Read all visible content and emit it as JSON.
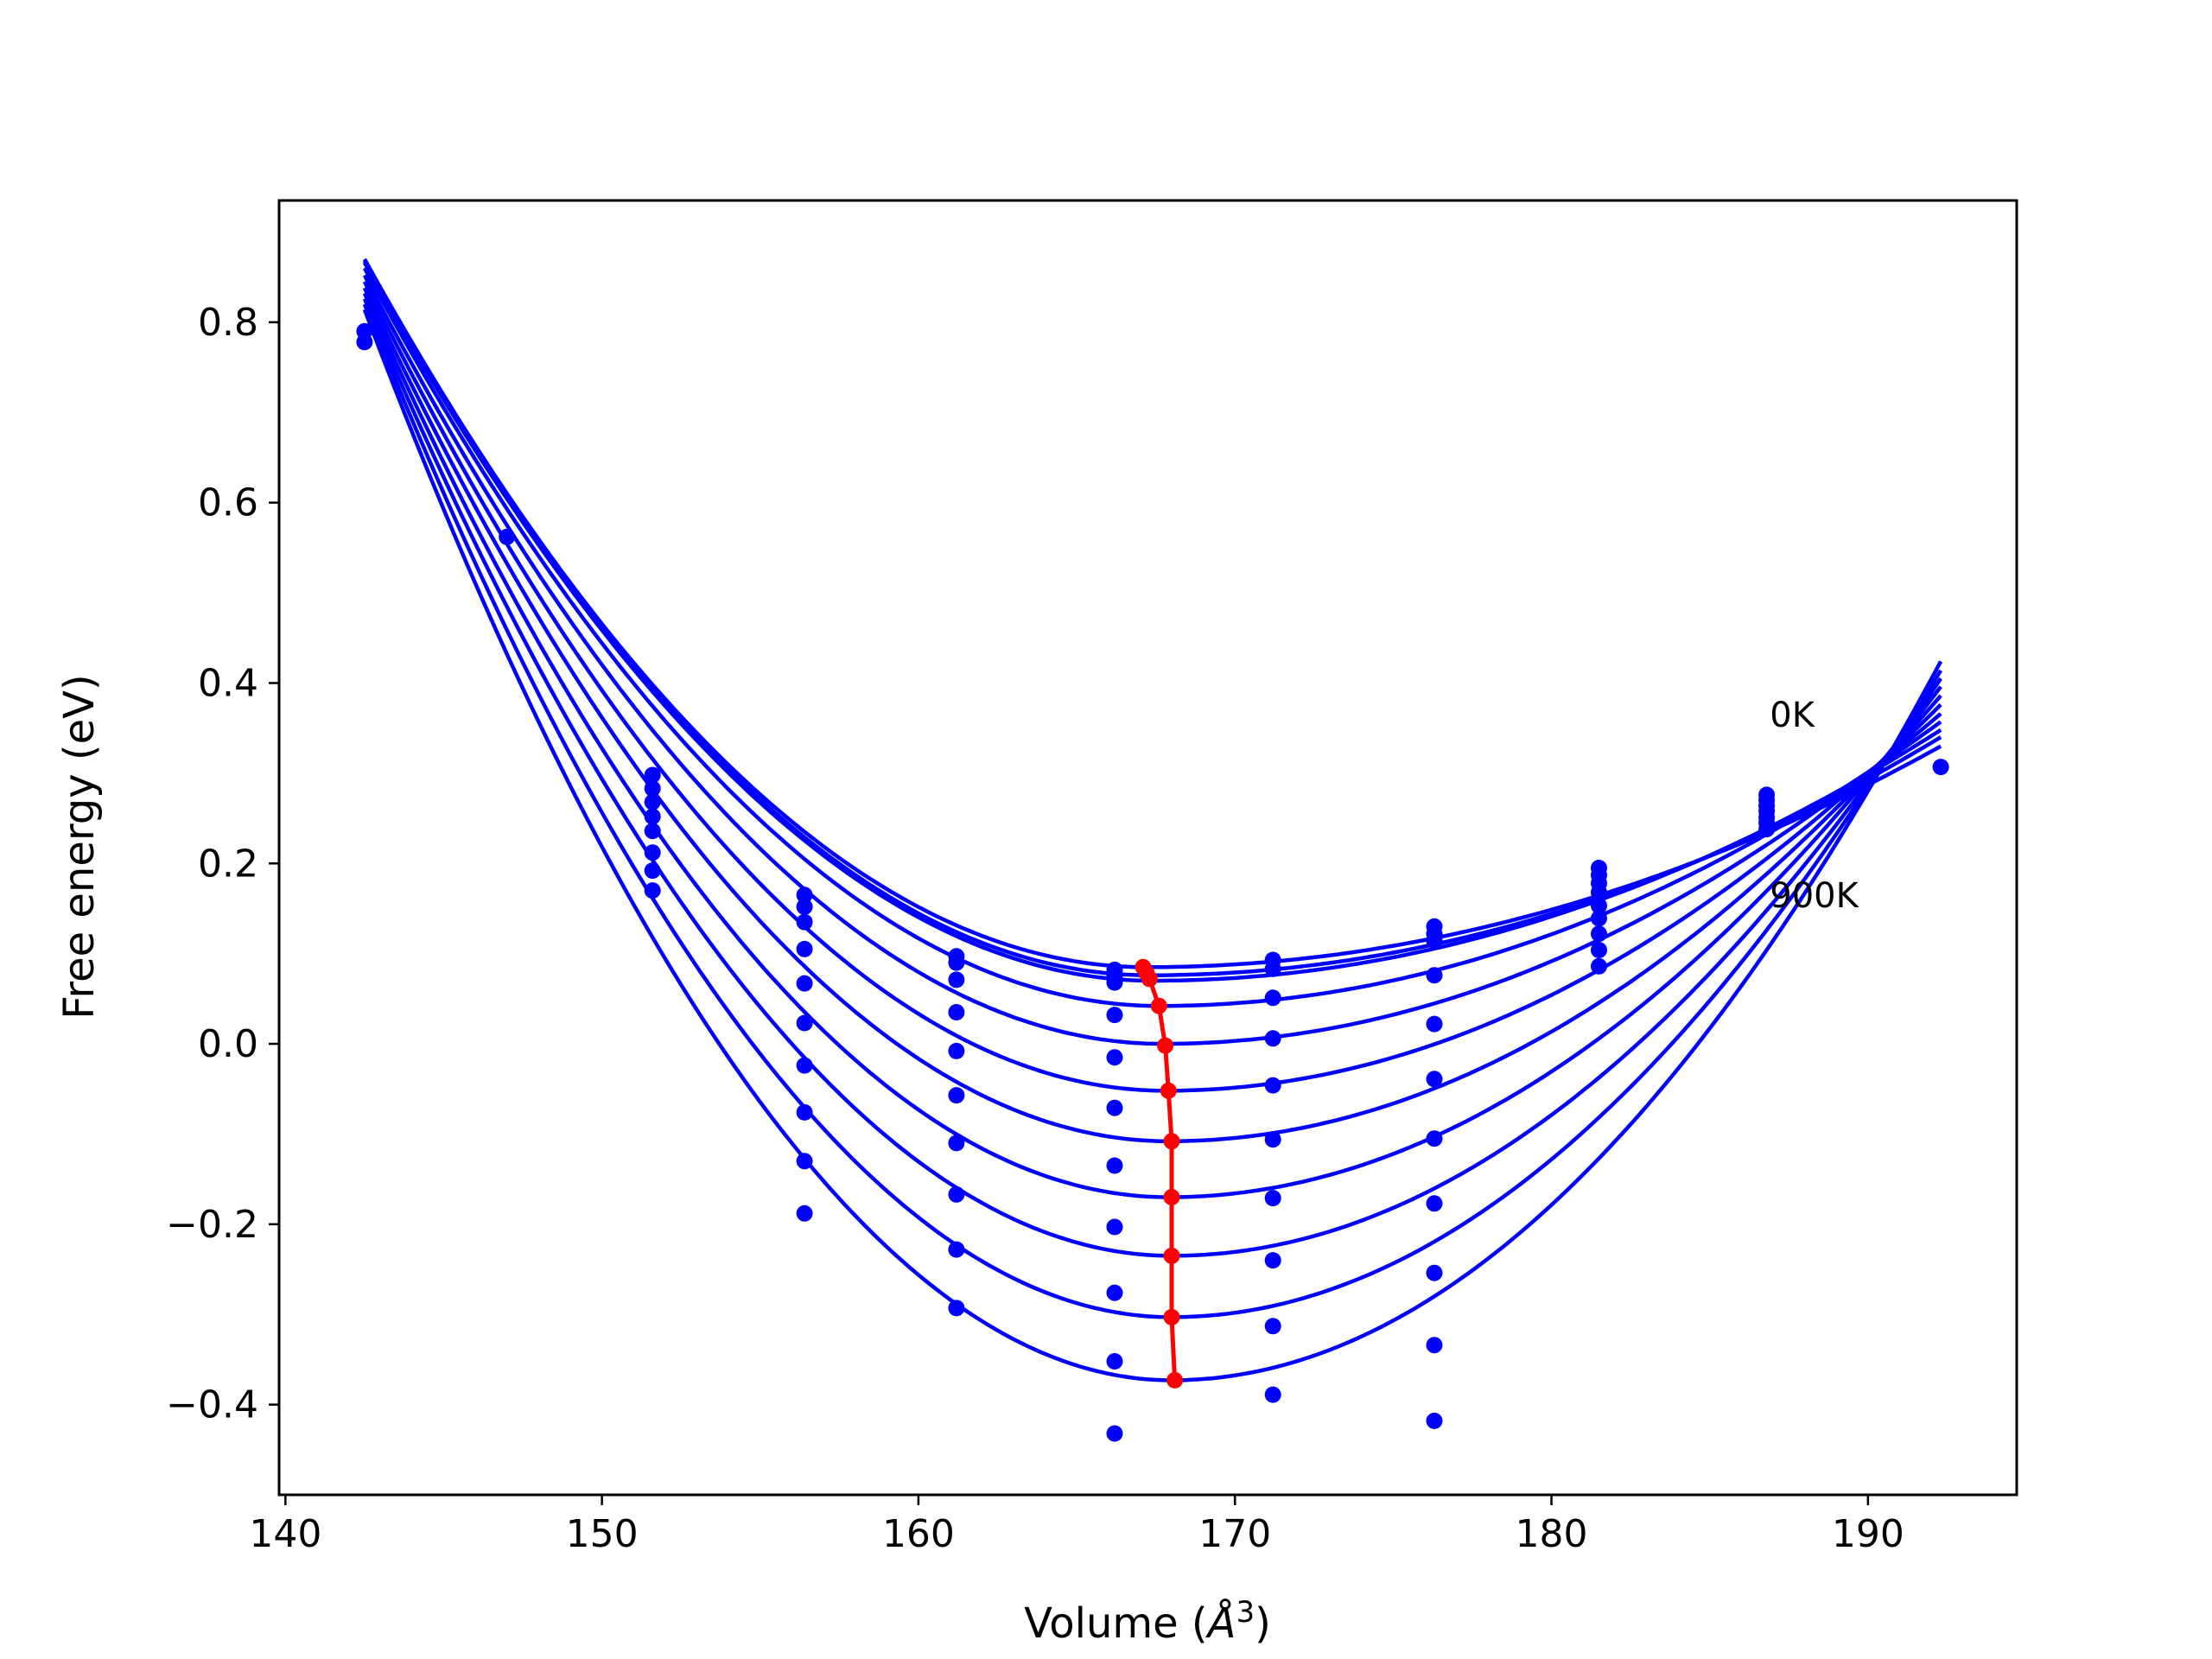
{
  "chart_data": {
    "type": "line",
    "title": "",
    "xlabel": "Volume (",
    "xlabel_symbol": "Å",
    "xlabel_exponent": "3",
    "xlabel_close": ")",
    "ylabel": "Free energy (eV)",
    "xlim": [
      139.8,
      194.7
    ],
    "ylim": [
      -0.5,
      0.935
    ],
    "xticks": [
      140,
      150,
      160,
      170,
      180,
      190
    ],
    "xtick_labels": [
      "140",
      "150",
      "160",
      "170",
      "180",
      "190"
    ],
    "yticks": [
      -0.4,
      -0.2,
      0.0,
      0.2,
      0.4,
      0.6,
      0.8
    ],
    "ytick_labels": [
      "−0.4",
      "−0.2",
      "0.0",
      "0.2",
      "0.4",
      "0.6",
      "0.8"
    ],
    "grid": false,
    "annotations": [
      {
        "text": "0K",
        "x": 186.9,
        "y": 0.365
      },
      {
        "text": "900K",
        "x": 186.9,
        "y": 0.165
      }
    ],
    "curve_color": "#0000ff",
    "point_color": "#0000ff",
    "minimum_line_color": "#ff0000",
    "fit_curves": [
      {
        "v0": 167.2,
        "e0": 0.085,
        "y_at_142_5": 0.87,
        "y_at_192_3": 0.33
      },
      {
        "v0": 167.3,
        "e0": 0.076,
        "y_at_142_5": 0.868,
        "y_at_192_3": 0.34
      },
      {
        "v0": 167.4,
        "e0": 0.07,
        "y_at_142_5": 0.866,
        "y_at_192_3": 0.348
      },
      {
        "v0": 167.6,
        "e0": 0.042,
        "y_at_142_5": 0.86,
        "y_at_192_3": 0.357
      },
      {
        "v0": 167.7,
        "e0": 0.0,
        "y_at_142_5": 0.852,
        "y_at_192_3": 0.366
      },
      {
        "v0": 167.8,
        "e0": -0.052,
        "y_at_142_5": 0.845,
        "y_at_192_3": 0.376
      },
      {
        "v0": 167.9,
        "e0": -0.108,
        "y_at_142_5": 0.838,
        "y_at_192_3": 0.386
      },
      {
        "v0": 167.9,
        "e0": -0.17,
        "y_at_142_5": 0.832,
        "y_at_192_3": 0.396
      },
      {
        "v0": 168.0,
        "e0": -0.235,
        "y_at_142_5": 0.826,
        "y_at_192_3": 0.405
      },
      {
        "v0": 168.0,
        "e0": -0.303,
        "y_at_142_5": 0.82,
        "y_at_192_3": 0.414
      },
      {
        "v0": 168.0,
        "e0": -0.373,
        "y_at_142_5": 0.814,
        "y_at_192_3": 0.424
      }
    ],
    "points": [
      {
        "x": 142.5,
        "y": 0.778
      },
      {
        "x": 142.5,
        "y": 0.79
      },
      {
        "x": 147.0,
        "y": 0.562
      },
      {
        "x": 151.6,
        "y": 0.298
      },
      {
        "x": 151.6,
        "y": 0.283
      },
      {
        "x": 151.6,
        "y": 0.268
      },
      {
        "x": 151.6,
        "y": 0.252
      },
      {
        "x": 151.6,
        "y": 0.236
      },
      {
        "x": 151.6,
        "y": 0.212
      },
      {
        "x": 151.6,
        "y": 0.192
      },
      {
        "x": 151.6,
        "y": 0.17
      },
      {
        "x": 156.4,
        "y": 0.165
      },
      {
        "x": 156.4,
        "y": 0.152
      },
      {
        "x": 156.4,
        "y": 0.135
      },
      {
        "x": 156.4,
        "y": 0.105
      },
      {
        "x": 156.4,
        "y": 0.067
      },
      {
        "x": 156.4,
        "y": 0.023
      },
      {
        "x": 156.4,
        "y": -0.024
      },
      {
        "x": 156.4,
        "y": -0.076
      },
      {
        "x": 156.4,
        "y": -0.13
      },
      {
        "x": 156.4,
        "y": -0.188
      },
      {
        "x": 161.2,
        "y": 0.097
      },
      {
        "x": 161.2,
        "y": 0.09
      },
      {
        "x": 161.2,
        "y": 0.071
      },
      {
        "x": 161.2,
        "y": 0.035
      },
      {
        "x": 161.2,
        "y": -0.008
      },
      {
        "x": 161.2,
        "y": -0.057
      },
      {
        "x": 161.2,
        "y": -0.11
      },
      {
        "x": 161.2,
        "y": -0.167
      },
      {
        "x": 161.2,
        "y": -0.228
      },
      {
        "x": 161.2,
        "y": -0.293
      },
      {
        "x": 166.2,
        "y": 0.082
      },
      {
        "x": 166.2,
        "y": 0.075
      },
      {
        "x": 166.2,
        "y": 0.068
      },
      {
        "x": 166.2,
        "y": 0.032
      },
      {
        "x": 166.2,
        "y": -0.015
      },
      {
        "x": 166.2,
        "y": -0.071
      },
      {
        "x": 166.2,
        "y": -0.135
      },
      {
        "x": 166.2,
        "y": -0.203
      },
      {
        "x": 166.2,
        "y": -0.276
      },
      {
        "x": 166.2,
        "y": -0.352
      },
      {
        "x": 166.2,
        "y": -0.432
      },
      {
        "x": 171.2,
        "y": 0.093
      },
      {
        "x": 171.2,
        "y": 0.083
      },
      {
        "x": 171.2,
        "y": 0.051
      },
      {
        "x": 171.2,
        "y": 0.006
      },
      {
        "x": 171.2,
        "y": -0.046
      },
      {
        "x": 171.2,
        "y": -0.106
      },
      {
        "x": 171.2,
        "y": -0.171
      },
      {
        "x": 171.2,
        "y": -0.24
      },
      {
        "x": 171.2,
        "y": -0.313
      },
      {
        "x": 171.2,
        "y": -0.389
      },
      {
        "x": 176.3,
        "y": 0.13
      },
      {
        "x": 176.3,
        "y": 0.122
      },
      {
        "x": 176.3,
        "y": 0.114
      },
      {
        "x": 176.3,
        "y": 0.076
      },
      {
        "x": 176.3,
        "y": 0.022
      },
      {
        "x": 176.3,
        "y": -0.039
      },
      {
        "x": 176.3,
        "y": -0.105
      },
      {
        "x": 176.3,
        "y": -0.177
      },
      {
        "x": 176.3,
        "y": -0.254
      },
      {
        "x": 176.3,
        "y": -0.334
      },
      {
        "x": 176.3,
        "y": -0.418
      },
      {
        "x": 181.5,
        "y": 0.195
      },
      {
        "x": 181.5,
        "y": 0.187
      },
      {
        "x": 181.5,
        "y": 0.178
      },
      {
        "x": 181.5,
        "y": 0.168
      },
      {
        "x": 181.5,
        "y": 0.153
      },
      {
        "x": 181.5,
        "y": 0.139
      },
      {
        "x": 181.5,
        "y": 0.122
      },
      {
        "x": 181.5,
        "y": 0.104
      },
      {
        "x": 181.5,
        "y": 0.086
      },
      {
        "x": 186.8,
        "y": 0.276
      },
      {
        "x": 186.8,
        "y": 0.27
      },
      {
        "x": 186.8,
        "y": 0.264
      },
      {
        "x": 186.8,
        "y": 0.258
      },
      {
        "x": 186.8,
        "y": 0.251
      },
      {
        "x": 186.8,
        "y": 0.245
      },
      {
        "x": 186.8,
        "y": 0.238
      },
      {
        "x": 192.3,
        "y": 0.307
      }
    ],
    "minimum_line": [
      {
        "x": 167.1,
        "y": 0.085
      },
      {
        "x": 167.2,
        "y": 0.079
      },
      {
        "x": 167.3,
        "y": 0.072
      },
      {
        "x": 167.6,
        "y": 0.042
      },
      {
        "x": 167.8,
        "y": -0.002
      },
      {
        "x": 167.9,
        "y": -0.052
      },
      {
        "x": 168.0,
        "y": -0.108
      },
      {
        "x": 168.0,
        "y": -0.17
      },
      {
        "x": 168.0,
        "y": -0.235
      },
      {
        "x": 168.0,
        "y": -0.303
      },
      {
        "x": 168.1,
        "y": -0.373
      }
    ]
  }
}
